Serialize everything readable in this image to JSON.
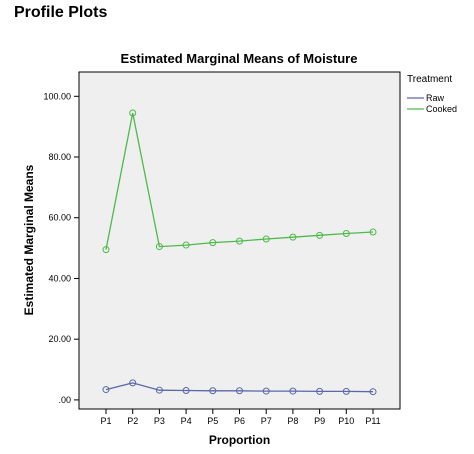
{
  "page": {
    "heading": "Profile Plots"
  },
  "colors": {
    "plot_background": "#efefef",
    "raw": "#5a67a8",
    "cooked": "#4dba4c"
  },
  "chart_data": {
    "type": "line",
    "title": "Estimated Marginal Means of Moisture",
    "xlabel": "Proportion",
    "ylabel": "Estimated Marginal Means",
    "categories": [
      "P1",
      "P2",
      "P3",
      "P4",
      "P5",
      "P6",
      "P7",
      "P8",
      "P9",
      "P10",
      "P11"
    ],
    "ylim": [
      -3,
      108
    ],
    "yticks": [
      0,
      20,
      40,
      60,
      80,
      100
    ],
    "ytick_labels": [
      ".00",
      "20.00",
      "40.00",
      "60.00",
      "80.00",
      "100.00"
    ],
    "grid": false,
    "legend": {
      "title": "Treatment",
      "placement": "right"
    },
    "series": [
      {
        "name": "Raw",
        "color": "#5a67a8",
        "values": [
          3.4,
          5.6,
          3.2,
          3.1,
          3.0,
          3.0,
          2.9,
          2.9,
          2.8,
          2.8,
          2.7
        ]
      },
      {
        "name": "Cooked",
        "color": "#4dba4c",
        "values": [
          49.5,
          94.5,
          50.5,
          51.0,
          51.8,
          52.3,
          53.0,
          53.6,
          54.2,
          54.8,
          55.3
        ]
      }
    ]
  }
}
